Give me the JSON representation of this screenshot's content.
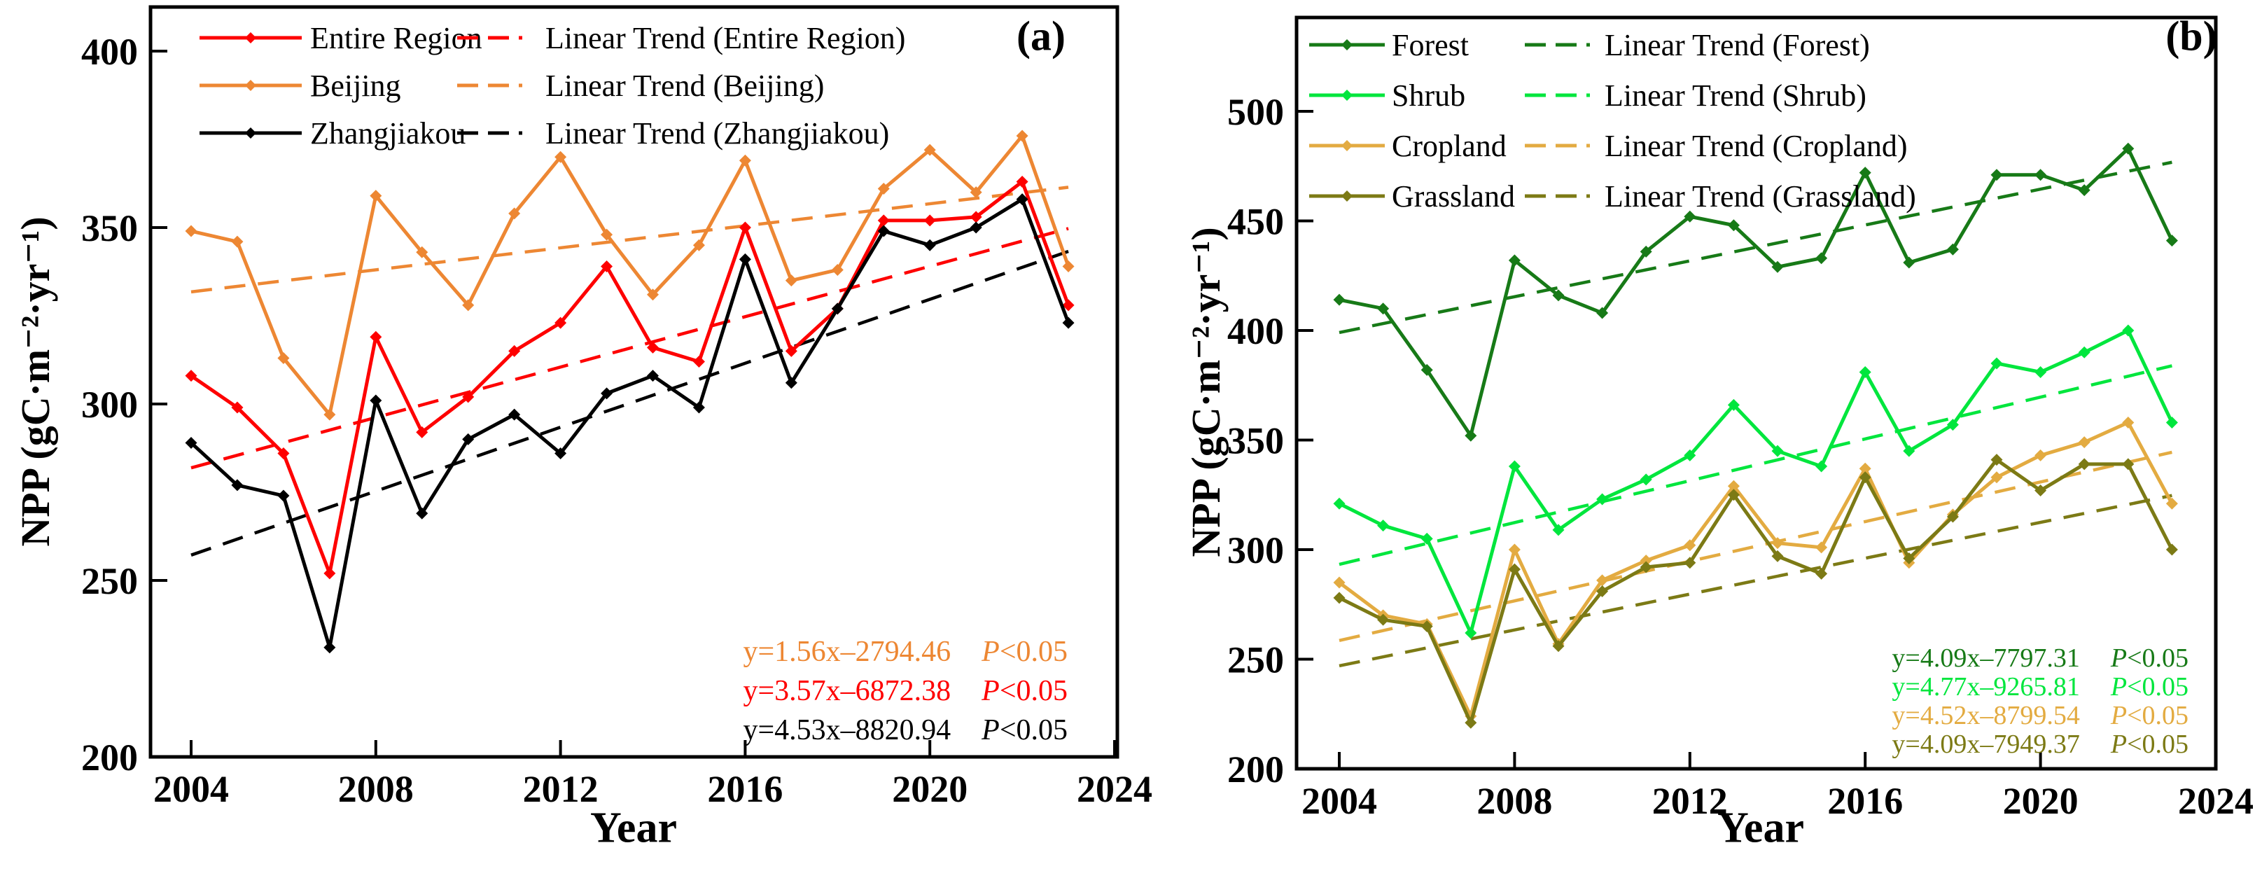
{
  "chart_data": [
    {
      "type": "line",
      "panel_label": "(a)",
      "title": "",
      "xlabel": "Year",
      "ylabel": "NPP (gC·m⁻²·yr⁻¹)",
      "legend_position": "top-left",
      "grid": false,
      "x_ticks": [
        2004,
        2008,
        2012,
        2016,
        2020,
        2024
      ],
      "y_ticks": [
        200,
        250,
        300,
        350,
        400
      ],
      "xlim": [
        2003,
        2024
      ],
      "ylim": [
        200,
        412
      ],
      "years": [
        2004,
        2005,
        2006,
        2007,
        2008,
        2009,
        2010,
        2011,
        2012,
        2013,
        2014,
        2015,
        2016,
        2017,
        2018,
        2019,
        2020,
        2021,
        2022,
        2023
      ],
      "series": [
        {
          "name": "Entire Region",
          "color": "#fe0000",
          "values": [
            308,
            299,
            286,
            252,
            319,
            292,
            302,
            315,
            323,
            339,
            316,
            312,
            350,
            315,
            327,
            352,
            352,
            353,
            363,
            328
          ]
        },
        {
          "name": "Beijing",
          "color": "#ed8733",
          "values": [
            349,
            346,
            313,
            297,
            359,
            343,
            328,
            354,
            370,
            348,
            331,
            345,
            369,
            335,
            338,
            361,
            372,
            360,
            376,
            339
          ]
        },
        {
          "name": "Zhangjiakou",
          "color": "#000000",
          "values": [
            289,
            277,
            274,
            231,
            301,
            269,
            290,
            297,
            286,
            303,
            308,
            299,
            341,
            306,
            327,
            349,
            345,
            350,
            358,
            323
          ]
        }
      ],
      "trends": [
        {
          "name": "Linear Trend (Entire Region)",
          "color": "#fe0000",
          "slope": 3.57,
          "intercept": -6872.38
        },
        {
          "name": "Linear Trend (Beijing)",
          "color": "#ed8733",
          "slope": 1.56,
          "intercept": -2794.46
        },
        {
          "name": "Linear Trend (Zhangjiakou)",
          "color": "#000000",
          "slope": 4.53,
          "intercept": -8820.94
        }
      ],
      "equations": [
        {
          "formula": "y=1.56x–2794.46",
          "p_symbol": "P",
          "p_rest": "<0.05",
          "color": "#ed8733"
        },
        {
          "formula": "y=3.57x–6872.38",
          "p_symbol": "P",
          "p_rest": "<0.05",
          "color": "#fe0000"
        },
        {
          "formula": "y=4.53x–8820.94",
          "p_symbol": "P",
          "p_rest": "<0.05",
          "color": "#000000"
        }
      ]
    },
    {
      "type": "line",
      "panel_label": "(b)",
      "title": "",
      "xlabel": "Year",
      "ylabel": "NPP (gC·m⁻²·yr⁻¹)",
      "legend_position": "top-left",
      "grid": false,
      "x_ticks": [
        2004,
        2008,
        2012,
        2016,
        2020,
        2024
      ],
      "y_ticks": [
        200,
        250,
        300,
        350,
        400,
        450,
        500
      ],
      "xlim": [
        2003,
        2024
      ],
      "ylim": [
        200,
        545
      ],
      "years": [
        2004,
        2005,
        2006,
        2007,
        2008,
        2009,
        2010,
        2011,
        2012,
        2013,
        2014,
        2015,
        2016,
        2017,
        2018,
        2019,
        2020,
        2021,
        2022,
        2023
      ],
      "series": [
        {
          "name": "Forest",
          "color": "#177a17",
          "values": [
            414,
            410,
            382,
            352,
            432,
            416,
            408,
            436,
            452,
            448,
            429,
            433,
            472,
            431,
            437,
            471,
            471,
            464,
            483,
            441
          ]
        },
        {
          "name": "Shrub",
          "color": "#00e63d",
          "values": [
            321,
            311,
            305,
            262,
            338,
            309,
            323,
            332,
            343,
            366,
            345,
            338,
            381,
            345,
            357,
            385,
            381,
            390,
            400,
            358
          ]
        },
        {
          "name": "Cropland",
          "color": "#e3ab41",
          "values": [
            285,
            270,
            266,
            224,
            300,
            257,
            286,
            295,
            302,
            329,
            303,
            301,
            337,
            294,
            316,
            333,
            343,
            349,
            358,
            321
          ]
        },
        {
          "name": "Grassland",
          "color": "#7c7a15",
          "values": [
            278,
            268,
            265,
            221,
            291,
            256,
            281,
            292,
            294,
            325,
            297,
            289,
            333,
            296,
            315,
            341,
            327,
            339,
            339,
            300
          ]
        }
      ],
      "trends": [
        {
          "name": "Linear Trend (Forest)",
          "color": "#177a17",
          "slope": 4.09,
          "intercept": -7797.31
        },
        {
          "name": "Linear Trend (Shrub)",
          "color": "#00e63d",
          "slope": 4.77,
          "intercept": -9265.81
        },
        {
          "name": "Linear Trend (Cropland)",
          "color": "#e3ab41",
          "slope": 4.52,
          "intercept": -8799.54
        },
        {
          "name": "Linear Trend (Grassland)",
          "color": "#7c7a15",
          "slope": 4.09,
          "intercept": -7949.37
        }
      ],
      "equations": [
        {
          "formula": "y=4.09x–7797.31",
          "p_symbol": "P",
          "p_rest": "<0.05",
          "color": "#177a17"
        },
        {
          "formula": "y=4.77x–9265.81",
          "p_symbol": "P",
          "p_rest": "<0.05",
          "color": "#00e63d"
        },
        {
          "formula": "y=4.52x–8799.54",
          "p_symbol": "P",
          "p_rest": "<0.05",
          "color": "#e3ab41"
        },
        {
          "formula": "y=4.09x–7949.37",
          "p_symbol": "P",
          "p_rest": "<0.05",
          "color": "#7c7a15"
        }
      ]
    }
  ]
}
